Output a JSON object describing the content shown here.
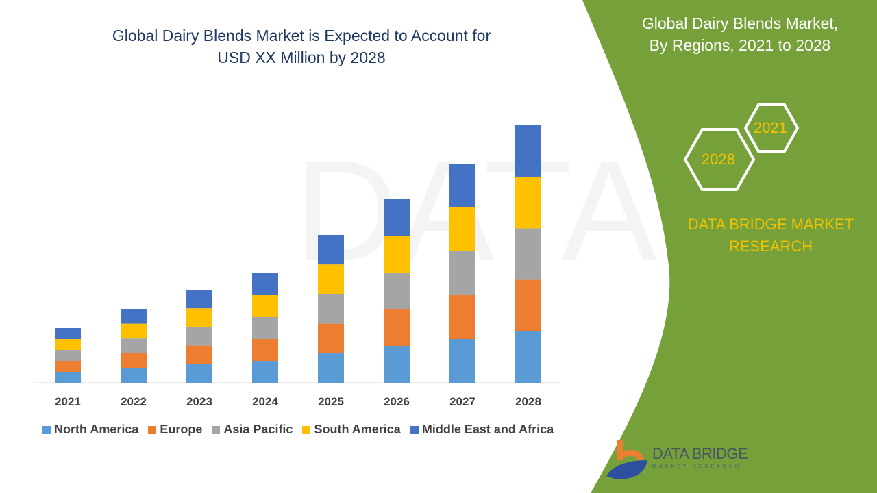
{
  "header": {
    "title_line1": "Global Dairy Blends Market is Expected to Account for",
    "title_line2": "USD XX Million by 2028"
  },
  "side_panel": {
    "title_line1": "Global Dairy Blends Market,",
    "title_line2": "By Regions, 2021 to 2028",
    "hex_start": "2021",
    "hex_end": "2028",
    "brand_line1": "DATA BRIDGE MARKET",
    "brand_line2": "RESEARCH",
    "logo_text": "DATA BRIDGE",
    "logo_subtext": "MARKET RESEARCH",
    "panel_color": "#76a03a"
  },
  "chart_data": {
    "type": "bar",
    "stacked": true,
    "title": "",
    "xlabel": "",
    "ylabel": "",
    "y_axis_shown": false,
    "grid": false,
    "legend_position": "bottom",
    "categories": [
      "2021",
      "2022",
      "2023",
      "2024",
      "2025",
      "2026",
      "2027",
      "2028"
    ],
    "series": [
      {
        "name": "North America",
        "color": "#5b9bd5",
        "values": [
          1.0,
          1.35,
          1.7,
          2.0,
          2.7,
          3.35,
          4.0,
          4.7
        ]
      },
      {
        "name": "Europe",
        "color": "#ed7d31",
        "values": [
          1.0,
          1.35,
          1.7,
          2.0,
          2.7,
          3.35,
          4.0,
          4.7
        ]
      },
      {
        "name": "Asia Pacific",
        "color": "#a5a5a5",
        "values": [
          1.0,
          1.35,
          1.7,
          2.0,
          2.7,
          3.35,
          4.0,
          4.7
        ]
      },
      {
        "name": "South America",
        "color": "#ffc000",
        "values": [
          1.0,
          1.35,
          1.7,
          2.0,
          2.7,
          3.35,
          4.0,
          4.7
        ]
      },
      {
        "name": "Middle East and Africa",
        "color": "#4472c4",
        "values": [
          1.0,
          1.35,
          1.7,
          2.0,
          2.7,
          3.35,
          4.0,
          4.7
        ]
      }
    ]
  }
}
